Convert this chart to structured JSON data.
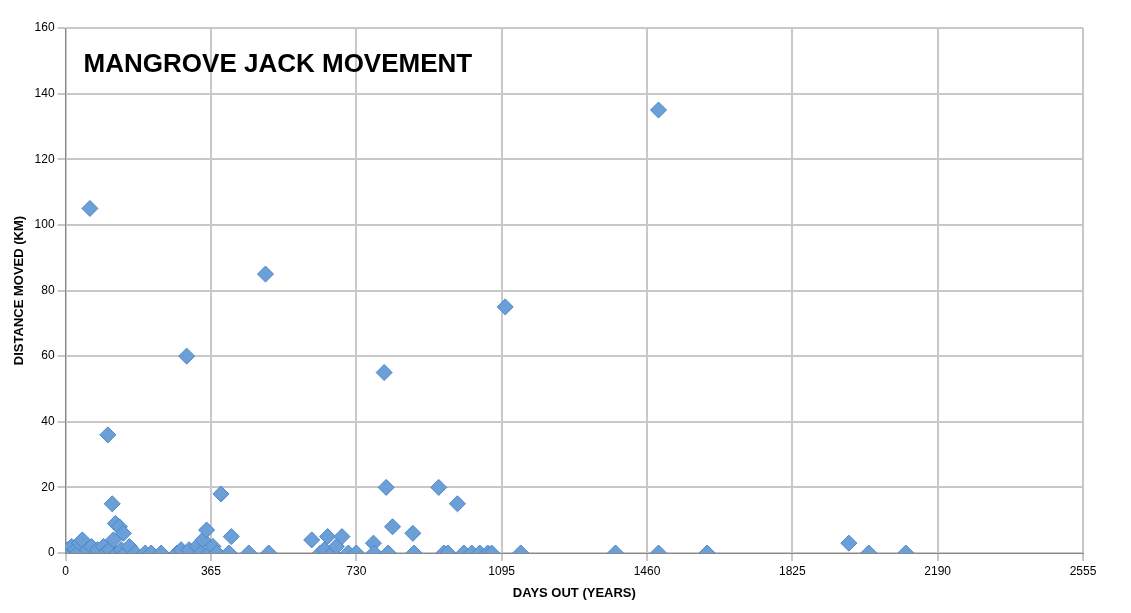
{
  "chart_data": {
    "type": "scatter",
    "title": "MANGROVE JACK MOVEMENT",
    "xlabel": "DAYS OUT (YEARS)",
    "ylabel": "DISTANCE MOVED (KM)",
    "x": [
      5,
      15,
      25,
      30,
      35,
      42,
      55,
      61,
      65,
      80,
      95,
      100,
      106,
      110,
      117,
      120,
      125,
      130,
      135,
      140,
      145,
      150,
      160,
      175,
      200,
      215,
      240,
      280,
      290,
      304,
      310,
      330,
      340,
      345,
      354,
      360,
      370,
      380,
      390,
      410,
      416,
      460,
      502,
      510,
      618,
      640,
      650,
      658,
      670,
      680,
      694,
      710,
      730,
      773,
      775,
      800,
      805,
      810,
      821,
      872,
      875,
      937,
      950,
      960,
      984,
      1000,
      1020,
      1040,
      1060,
      1070,
      1104,
      1143,
      1381,
      1489,
      1489,
      1611,
      1967,
      2017,
      2110
    ],
    "values": [
      1,
      2,
      1,
      0,
      3,
      4,
      1,
      105,
      2,
      1,
      2,
      0,
      36,
      1,
      15,
      4,
      9,
      0,
      8,
      1,
      6,
      0,
      2,
      0,
      0,
      0,
      0,
      0,
      1,
      60,
      1,
      2,
      0,
      4,
      7,
      0,
      2,
      0,
      18,
      0,
      5,
      0,
      85,
      0,
      4,
      0,
      1,
      5,
      0,
      2,
      5,
      0,
      0,
      3,
      0,
      55,
      20,
      0,
      8,
      6,
      0,
      20,
      0,
      0,
      15,
      0,
      0,
      0,
      0,
      0,
      75,
      0,
      0,
      135,
      0,
      0,
      3,
      0,
      0
    ],
    "color": "#6a9fd8",
    "marker": "diamond",
    "grid": true,
    "legend": false,
    "xlim": [
      0,
      2555
    ],
    "xticks": [
      0,
      365,
      730,
      1095,
      1460,
      1825,
      2190,
      2555
    ],
    "ylim": [
      0,
      160
    ],
    "yticks": [
      0,
      20,
      40,
      60,
      80,
      100,
      120,
      140,
      160
    ]
  }
}
